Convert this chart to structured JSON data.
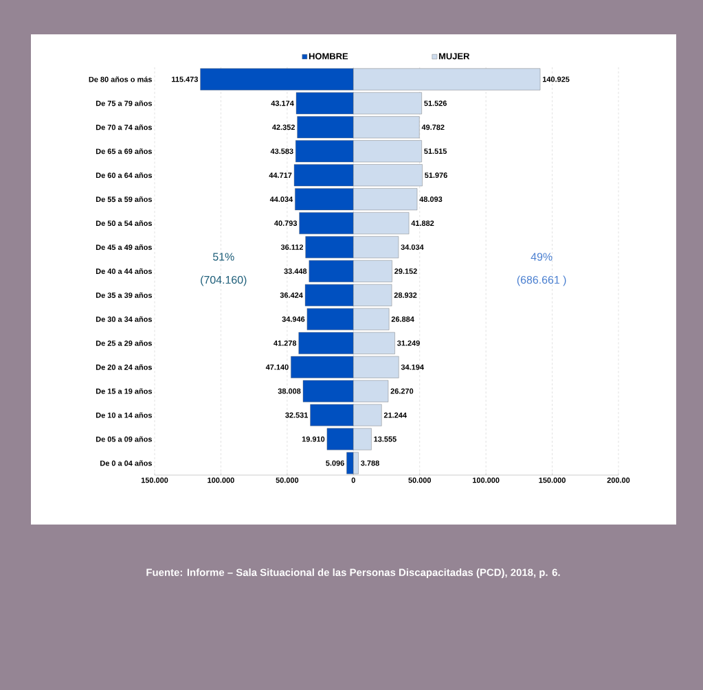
{
  "chart_data": {
    "type": "bar",
    "orientation": "horizontal",
    "categories": [
      "De 80 años o más",
      "De 75 a 79 años",
      "De 70 a 74 años",
      "De 65 a 69 años",
      "De 60 a 64 años",
      "De 55 a 59 años",
      "De 50 a 54 años",
      "De 45 a 49 años",
      "De 40 a 44 años",
      "De 35 a 39 años",
      "De 30 a 34 años",
      "De 25 a 29 años",
      "De 20 a 24 años",
      "De 15 a 19 años",
      "De 10 a 14 años",
      "De 05 a 09 años",
      "De 0 a 04 años"
    ],
    "series": [
      {
        "name": "HOMBRE",
        "color": "#0050c0",
        "values": [
          115.473,
          43.174,
          42.352,
          43.583,
          44.717,
          44.034,
          40.793,
          36.112,
          33.448,
          36.424,
          34.946,
          41.278,
          47.14,
          38.008,
          32.531,
          19.91,
          5.096
        ],
        "value_labels": [
          "115.473",
          "43.174",
          "42.352",
          "43.583",
          "44.717",
          "44.034",
          "40.793",
          "36.112",
          "33.448",
          "36.424",
          "34.946",
          "41.278",
          "47.140",
          "38.008",
          "32.531",
          "19.910",
          "5.096"
        ],
        "base": [
          -115.473,
          -43.174,
          -42.352,
          -43.583,
          -44.717,
          -44.034,
          -40.793,
          -36.112,
          -33.448,
          -36.424,
          -34.946,
          -41.278,
          -47.14,
          -38.008,
          -32.531,
          -19.91,
          -5.096
        ]
      },
      {
        "name": "MUJER",
        "color": "#cddcee",
        "values": [
          140.925,
          51.526,
          49.782,
          51.515,
          51.976,
          48.093,
          41.882,
          34.034,
          29.152,
          28.932,
          26.884,
          31.249,
          34.194,
          26.27,
          21.244,
          13.555,
          3.788
        ],
        "value_labels": [
          "140.925",
          "51.526",
          "49.782",
          "51.515",
          "51.976",
          "48.093",
          "41.882",
          "34.034",
          "29.152",
          "28.932",
          "26.884",
          "31.249",
          "34.194",
          "26.270",
          "21.244",
          "13.555",
          "3.788"
        ]
      }
    ],
    "xlim": [
      -150,
      200
    ],
    "xticks": [
      {
        "value": -150,
        "label": "150.000"
      },
      {
        "value": -100,
        "label": "100.000"
      },
      {
        "value": -50,
        "label": "50.000"
      },
      0,
      {
        "value": 50,
        "label": "50.000"
      },
      {
        "value": 100,
        "label": "100.000"
      },
      {
        "value": 150,
        "label": "150.000"
      },
      {
        "value": 200,
        "label": "200.00"
      }
    ],
    "grid": "x",
    "legend": "top",
    "annotations": [
      "51%",
      "(704.160)",
      "49%",
      "(686.661 )",
      "Fuente: Informe – Sala Situacional de las Personas Discapacitadas (PCD), 2018, p. 6."
    ]
  }
}
